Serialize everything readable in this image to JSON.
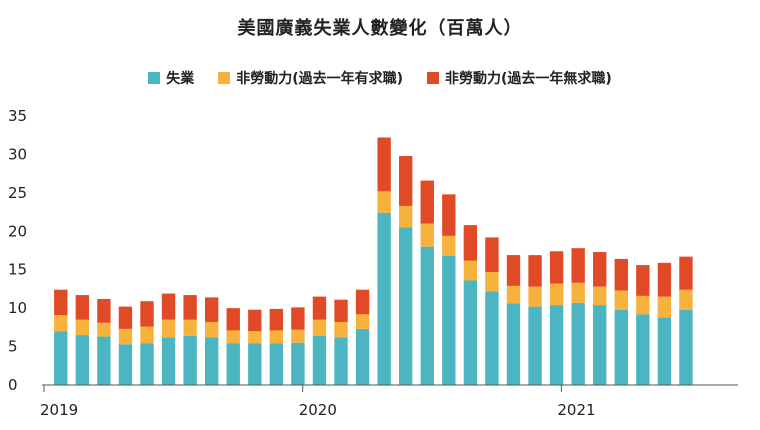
{
  "chart_data": {
    "type": "bar",
    "stacked": true,
    "title": "美國廣義失業人數變化（百萬人）",
    "xlabel": "",
    "ylabel": "",
    "ylim": [
      0,
      35
    ],
    "yticks": [
      0,
      5,
      10,
      15,
      20,
      25,
      30,
      35
    ],
    "x_tick_labels": [
      {
        "label": "2019",
        "index": 0
      },
      {
        "label": "2020",
        "index": 12
      },
      {
        "label": "2021",
        "index": 24
      }
    ],
    "grid": false,
    "legend_position": "top",
    "categories": [
      "2019-01",
      "2019-02",
      "2019-03",
      "2019-04",
      "2019-05",
      "2019-06",
      "2019-07",
      "2019-08",
      "2019-09",
      "2019-10",
      "2019-11",
      "2019-12",
      "2020-01",
      "2020-02",
      "2020-03",
      "2020-04",
      "2020-05",
      "2020-06",
      "2020-07",
      "2020-08",
      "2020-09",
      "2020-10",
      "2020-11",
      "2020-12",
      "2021-01",
      "2021-02",
      "2021-03",
      "2021-04",
      "2021-05",
      "2021-06",
      "2021-07",
      "2021-08"
    ],
    "series": [
      {
        "name": "失業",
        "color": "#4bb5c1",
        "values": [
          7.0,
          6.5,
          6.3,
          5.3,
          5.4,
          6.2,
          6.4,
          6.2,
          5.4,
          5.4,
          5.4,
          5.5,
          6.4,
          6.2,
          7.3,
          22.4,
          20.5,
          18.0,
          16.8,
          13.6,
          12.2,
          10.6,
          10.2,
          10.4,
          10.7,
          10.4,
          9.8,
          9.2,
          8.8,
          9.8,
          0,
          0
        ]
      },
      {
        "name": "非勞動力(過去一年有求職)",
        "color": "#f6b23d",
        "values": [
          2.1,
          2.0,
          1.8,
          2.0,
          2.2,
          2.3,
          2.1,
          2.0,
          1.7,
          1.6,
          1.7,
          1.7,
          2.1,
          2.0,
          1.9,
          2.8,
          2.8,
          3.0,
          2.6,
          2.6,
          2.5,
          2.3,
          2.6,
          2.8,
          2.6,
          2.4,
          2.5,
          2.4,
          2.7,
          2.6,
          0,
          0
        ]
      },
      {
        "name": "非勞動力(過去一年無求職)",
        "color": "#e04a26",
        "values": [
          3.3,
          3.2,
          3.1,
          2.9,
          3.3,
          3.4,
          3.2,
          3.2,
          2.9,
          2.8,
          2.8,
          2.9,
          3.0,
          2.9,
          3.2,
          7.0,
          6.5,
          5.6,
          5.4,
          4.6,
          4.5,
          4.0,
          4.1,
          4.2,
          4.5,
          4.5,
          4.1,
          4.0,
          4.4,
          4.3,
          0,
          0
        ]
      }
    ]
  }
}
